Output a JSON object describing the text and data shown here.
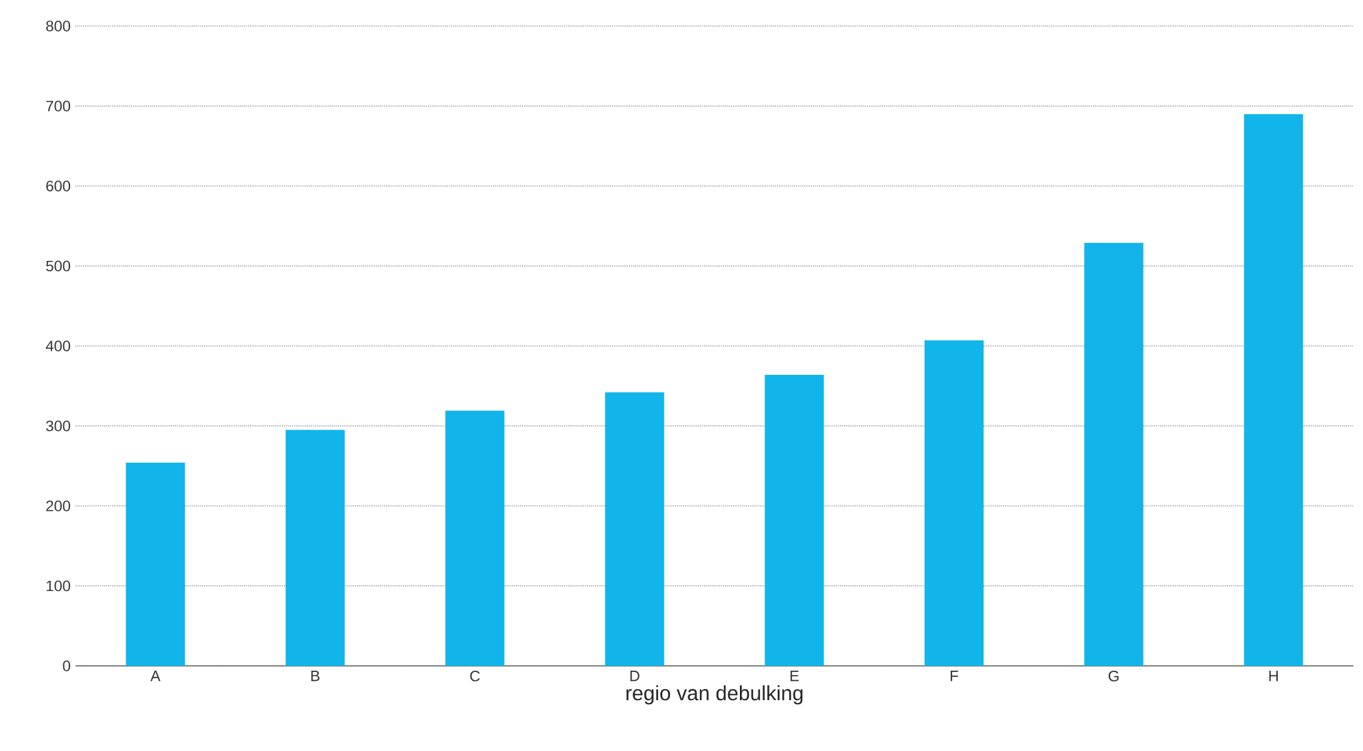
{
  "chart_data": {
    "type": "bar",
    "xlabel": "regio van debulking",
    "categories": [
      "A",
      "B",
      "C",
      "D",
      "E",
      "F",
      "G",
      "H"
    ],
    "values": [
      254,
      295,
      319,
      342,
      364,
      407,
      529,
      690
    ],
    "color": "#12b5ea",
    "ylim": [
      0,
      800
    ],
    "yticks": [
      0,
      100,
      200,
      300,
      400,
      500,
      600,
      700,
      800
    ],
    "grid": "y"
  }
}
